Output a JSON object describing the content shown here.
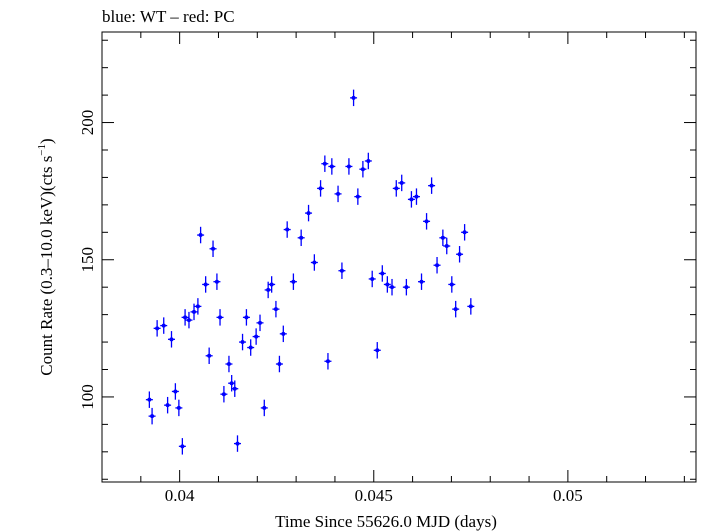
{
  "chart_data": {
    "type": "scatter",
    "title": "blue: WT – red: PC",
    "xlabel": "Time Since 55626.0 MJD (days)",
    "ylabel": "Count Rate (0.3–10.0 keV)(cts s",
    "ylabel_sup": "−1",
    "ylabel_tail": ")",
    "xlim": [
      0.038,
      0.0533
    ],
    "ylim": [
      69,
      233
    ],
    "x_ticks": [
      0.04,
      0.045,
      0.05
    ],
    "x_tick_labels": [
      "0.04",
      "0.045",
      "0.05"
    ],
    "y_ticks": [
      100,
      150,
      200
    ],
    "y_tick_labels": [
      "100",
      "150",
      "200"
    ],
    "grid": false,
    "legend": "none",
    "series": [
      {
        "color": "#0000ff",
        "points": [
          [
            0.03922,
            99,
            3
          ],
          [
            0.03929,
            93,
            3
          ],
          [
            0.03942,
            125,
            3
          ],
          [
            0.03959,
            126,
            3
          ],
          [
            0.03969,
            97,
            3
          ],
          [
            0.03979,
            121,
            3
          ],
          [
            0.03989,
            102,
            3
          ],
          [
            0.03998,
            96,
            3
          ],
          [
            0.04007,
            82,
            3
          ],
          [
            0.04014,
            129,
            3
          ],
          [
            0.04024,
            128,
            3
          ],
          [
            0.04037,
            131,
            3
          ],
          [
            0.04047,
            133,
            3
          ],
          [
            0.04054,
            159,
            3
          ],
          [
            0.04067,
            141,
            3
          ],
          [
            0.04076,
            115,
            3
          ],
          [
            0.04086,
            154,
            3
          ],
          [
            0.04096,
            142,
            3
          ],
          [
            0.04104,
            129,
            3
          ],
          [
            0.04114,
            101,
            3
          ],
          [
            0.04127,
            112,
            3
          ],
          [
            0.04134,
            105,
            3
          ],
          [
            0.04142,
            103,
            3
          ],
          [
            0.04149,
            83,
            3
          ],
          [
            0.04162,
            120,
            3
          ],
          [
            0.04172,
            129,
            3
          ],
          [
            0.04183,
            118,
            3
          ],
          [
            0.04197,
            122,
            3
          ],
          [
            0.04207,
            127,
            3
          ],
          [
            0.04218,
            96,
            3
          ],
          [
            0.04228,
            139,
            3
          ],
          [
            0.04237,
            141,
            3
          ],
          [
            0.04248,
            132,
            3
          ],
          [
            0.04257,
            112,
            3
          ],
          [
            0.04267,
            123,
            3
          ],
          [
            0.04277,
            161,
            3
          ],
          [
            0.04293,
            142,
            3
          ],
          [
            0.04313,
            158,
            3
          ],
          [
            0.04332,
            167,
            3
          ],
          [
            0.04347,
            149,
            3
          ],
          [
            0.04363,
            176,
            3
          ],
          [
            0.04374,
            185,
            3
          ],
          [
            0.04382,
            113,
            3
          ],
          [
            0.04392,
            184,
            3
          ],
          [
            0.04408,
            174,
            3
          ],
          [
            0.04418,
            146,
            3
          ],
          [
            0.04436,
            184,
            3
          ],
          [
            0.04448,
            209,
            3
          ],
          [
            0.04459,
            173,
            3
          ],
          [
            0.04472,
            183,
            3
          ],
          [
            0.04486,
            186,
            3
          ],
          [
            0.04496,
            143,
            3
          ],
          [
            0.04509,
            117,
            3
          ],
          [
            0.04522,
            145,
            3
          ],
          [
            0.04535,
            141,
            3
          ],
          [
            0.04547,
            140,
            3
          ],
          [
            0.04558,
            176,
            3
          ],
          [
            0.04572,
            178,
            3
          ],
          [
            0.04584,
            140,
            3
          ],
          [
            0.04597,
            172,
            3
          ],
          [
            0.0461,
            173,
            3
          ],
          [
            0.04623,
            142,
            3
          ],
          [
            0.04636,
            164,
            3
          ],
          [
            0.04649,
            177,
            3
          ],
          [
            0.04663,
            148,
            3
          ],
          [
            0.04678,
            158,
            3
          ],
          [
            0.04688,
            155,
            3
          ],
          [
            0.04701,
            141,
            3
          ],
          [
            0.04711,
            132,
            3
          ],
          [
            0.04721,
            152,
            3
          ],
          [
            0.04734,
            160,
            3
          ],
          [
            0.0475,
            133,
            3
          ]
        ]
      }
    ]
  }
}
